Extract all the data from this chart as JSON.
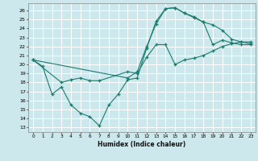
{
  "xlabel": "Humidex (Indice chaleur)",
  "ylabel": "",
  "bg_color": "#cce8ec",
  "grid_color": "#ffffff",
  "line_color": "#1a7a6e",
  "xlim": [
    -0.5,
    23.5
  ],
  "ylim": [
    12.5,
    26.8
  ],
  "yticks": [
    13,
    14,
    15,
    16,
    17,
    18,
    19,
    20,
    21,
    22,
    23,
    24,
    25,
    26
  ],
  "xticks": [
    0,
    1,
    2,
    3,
    4,
    5,
    6,
    7,
    8,
    9,
    10,
    11,
    12,
    13,
    14,
    15,
    16,
    17,
    18,
    19,
    20,
    21,
    22,
    23
  ],
  "line1_x": [
    0,
    1,
    2,
    3,
    4,
    5,
    6,
    7,
    8,
    9,
    10,
    11,
    12,
    13,
    14,
    15,
    16,
    17,
    18,
    19,
    20,
    21,
    22,
    23
  ],
  "line1_y": [
    20.5,
    19.8,
    16.7,
    17.5,
    15.5,
    14.6,
    14.2,
    13.2,
    15.5,
    16.7,
    18.3,
    18.5,
    21.8,
    24.8,
    26.2,
    26.3,
    25.7,
    25.3,
    24.7,
    24.4,
    23.8,
    22.8,
    22.5,
    22.3
  ],
  "line2_x": [
    0,
    3,
    4,
    5,
    6,
    7,
    10,
    11,
    12,
    13,
    14,
    15,
    16,
    17,
    18,
    19,
    20,
    21,
    22,
    23
  ],
  "line2_y": [
    20.5,
    18.0,
    18.3,
    18.5,
    18.2,
    18.2,
    19.2,
    19.0,
    20.8,
    22.2,
    22.2,
    20.0,
    20.5,
    20.7,
    21.0,
    21.5,
    22.0,
    22.3,
    22.5,
    22.5
  ],
  "line3_x": [
    0,
    10,
    11,
    12,
    13,
    14,
    15,
    16,
    17,
    18,
    19,
    20,
    21,
    22,
    23
  ],
  "line3_y": [
    20.5,
    18.5,
    19.2,
    22.0,
    24.5,
    26.2,
    26.3,
    25.7,
    25.2,
    24.7,
    22.2,
    22.7,
    22.4,
    22.2,
    22.2
  ]
}
